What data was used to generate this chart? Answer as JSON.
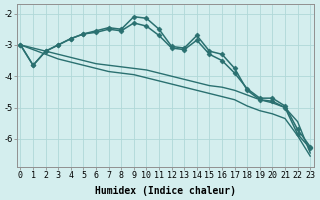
{
  "xlabel": "Humidex (Indice chaleur)",
  "bg_color": "#d4eeee",
  "grid_color": "#b0d8d8",
  "line_color": "#2a7070",
  "lines": [
    {
      "x": [
        0,
        1,
        2,
        3,
        4,
        5,
        6,
        7,
        8,
        9,
        10,
        11,
        12,
        13,
        14,
        15,
        16,
        17,
        18,
        19,
        20,
        21,
        22,
        23
      ],
      "y": [
        -3.0,
        -3.65,
        -3.2,
        -3.0,
        -2.8,
        -2.65,
        -2.55,
        -2.45,
        -2.5,
        -2.1,
        -2.15,
        -2.5,
        -3.05,
        -3.1,
        -2.7,
        -3.2,
        -3.3,
        -3.75,
        -4.45,
        -4.75,
        -4.8,
        -5.0,
        -5.85,
        -6.3
      ],
      "marker": "D",
      "markersize": 2.5,
      "linewidth": 1.1
    },
    {
      "x": [
        0,
        1,
        2,
        3,
        4,
        5,
        6,
        7,
        8,
        9,
        10,
        11,
        12,
        13,
        14,
        15,
        16,
        17,
        18,
        19,
        20,
        21,
        22,
        23
      ],
      "y": [
        -3.0,
        -3.65,
        -3.2,
        -3.0,
        -2.8,
        -2.65,
        -2.6,
        -2.5,
        -2.55,
        -2.3,
        -2.4,
        -2.7,
        -3.1,
        -3.15,
        -2.85,
        -3.3,
        -3.5,
        -3.9,
        -4.4,
        -4.7,
        -4.7,
        -4.95,
        -5.7,
        -6.25
      ],
      "marker": "D",
      "markersize": 2.5,
      "linewidth": 1.1
    },
    {
      "x": [
        0,
        1,
        2,
        3,
        4,
        5,
        6,
        7,
        8,
        9,
        10,
        11,
        12,
        13,
        14,
        15,
        16,
        17,
        18,
        19,
        20,
        21,
        22,
        23
      ],
      "y": [
        -3.0,
        -3.1,
        -3.2,
        -3.3,
        -3.4,
        -3.5,
        -3.6,
        -3.65,
        -3.7,
        -3.75,
        -3.8,
        -3.9,
        -4.0,
        -4.1,
        -4.2,
        -4.3,
        -4.35,
        -4.45,
        -4.6,
        -4.75,
        -4.85,
        -5.0,
        -5.45,
        -6.45
      ],
      "marker": null,
      "markersize": 0,
      "linewidth": 1.0
    },
    {
      "x": [
        0,
        1,
        2,
        3,
        4,
        5,
        6,
        7,
        8,
        9,
        10,
        11,
        12,
        13,
        14,
        15,
        16,
        17,
        18,
        19,
        20,
        21,
        22,
        23
      ],
      "y": [
        -3.0,
        -3.15,
        -3.3,
        -3.45,
        -3.55,
        -3.65,
        -3.75,
        -3.85,
        -3.9,
        -3.95,
        -4.05,
        -4.15,
        -4.25,
        -4.35,
        -4.45,
        -4.55,
        -4.65,
        -4.75,
        -4.95,
        -5.1,
        -5.2,
        -5.35,
        -5.9,
        -6.55
      ],
      "marker": null,
      "markersize": 0,
      "linewidth": 1.0
    }
  ],
  "xlim": [
    -0.3,
    23.3
  ],
  "ylim": [
    -6.9,
    -1.7
  ],
  "yticks": [
    -6,
    -5,
    -4,
    -3,
    -2
  ],
  "xticks": [
    0,
    1,
    2,
    3,
    4,
    5,
    6,
    7,
    8,
    9,
    10,
    11,
    12,
    13,
    14,
    15,
    16,
    17,
    18,
    19,
    20,
    21,
    22,
    23
  ],
  "label_fontsize": 7,
  "tick_fontsize": 6
}
